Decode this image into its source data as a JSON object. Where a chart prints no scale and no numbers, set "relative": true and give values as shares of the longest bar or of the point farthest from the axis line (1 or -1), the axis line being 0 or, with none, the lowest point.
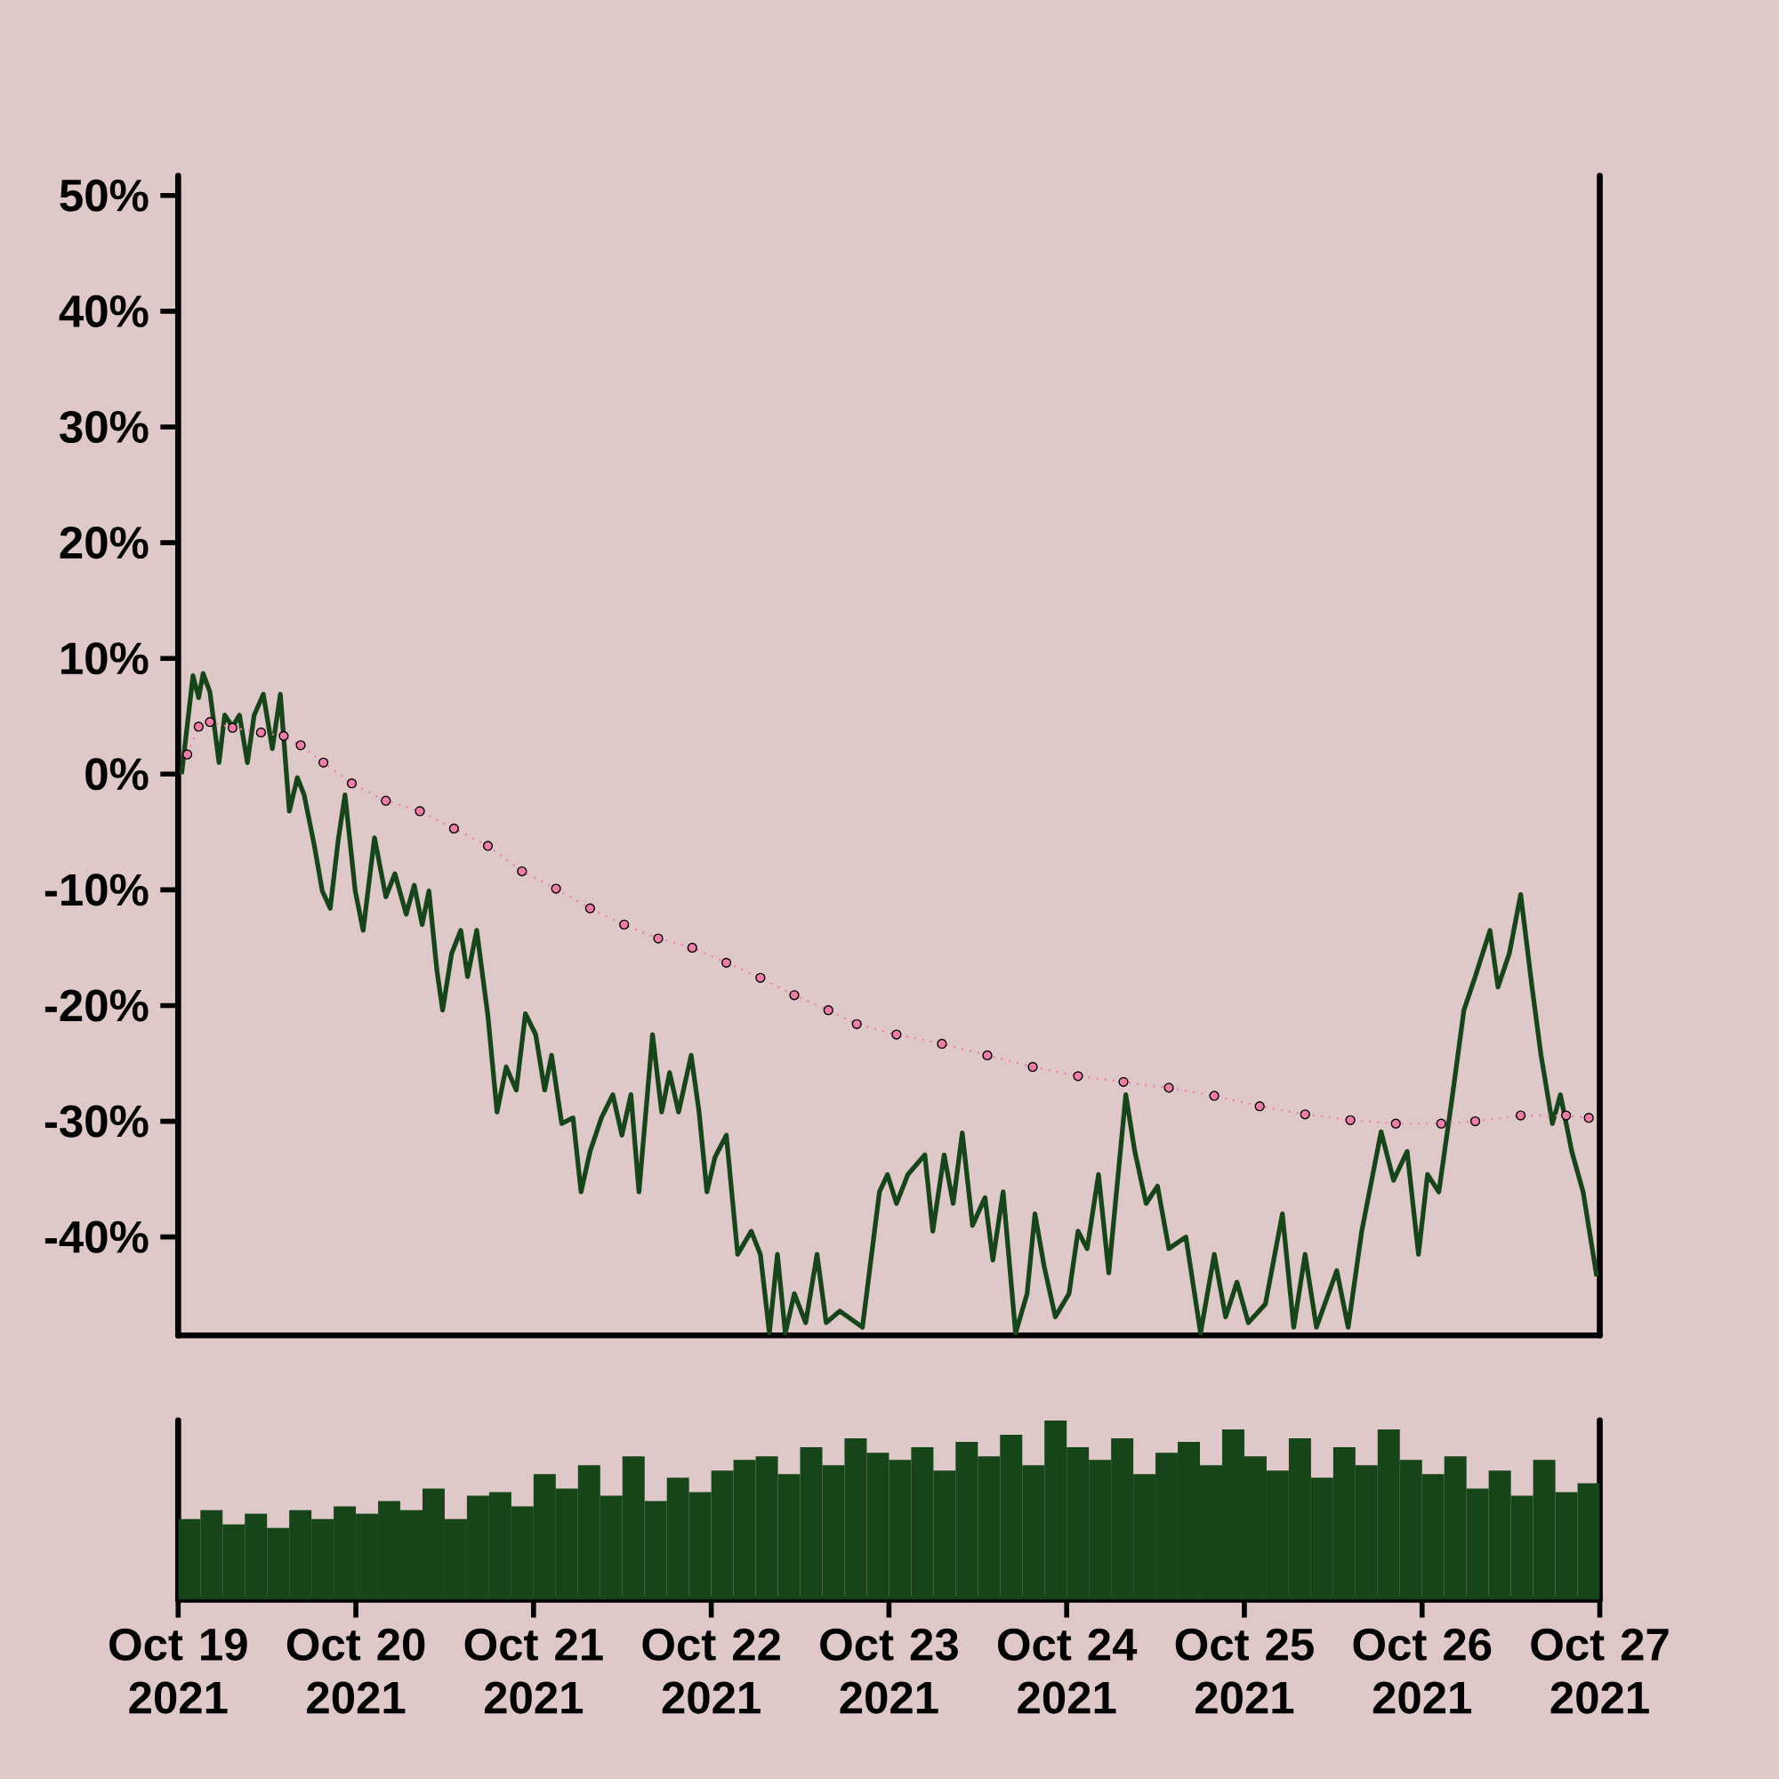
{
  "chart_data": [
    {
      "type": "line",
      "xlim": [
        "2021-10-19",
        "2021-10-27"
      ],
      "ylim": [
        -48.5,
        51.7
      ],
      "tick_labels": "y",
      "yticks": [
        {
          "value": 50,
          "label": "50%"
        },
        {
          "value": 40,
          "label": "40%"
        },
        {
          "value": 30,
          "label": "30%"
        },
        {
          "value": 20,
          "label": "20%"
        },
        {
          "value": 10,
          "label": "10%"
        },
        {
          "value": 0,
          "label": "0%"
        },
        {
          "value": -10,
          "label": "-10%"
        },
        {
          "value": -20,
          "label": "-20%"
        },
        {
          "value": -30,
          "label": "-30%"
        },
        {
          "value": -40,
          "label": "-40%"
        }
      ],
      "series": [
        {
          "color": "#16451a",
          "x": [
            "2021-10-19T00:28",
            "2021-10-19T02:00",
            "2021-10-19T02:46",
            "2021-10-19T03:22",
            "2021-10-19T04:17",
            "2021-10-19T05:31",
            "2021-10-19T06:17",
            "2021-10-19T07:21",
            "2021-10-19T08:17",
            "2021-10-19T09:21",
            "2021-10-19T10:16",
            "2021-10-19T11:30",
            "2021-10-19T12:43",
            "2021-10-19T13:48",
            "2021-10-19T15:01",
            "2021-10-19T16:06",
            "2021-10-19T17:01",
            "2021-10-19T18:24",
            "2021-10-19T19:28",
            "2021-10-19T20:32",
            "2021-10-19T21:37",
            "2021-10-19T22:32",
            "2021-10-19T23:55",
            "2021-10-20T00:59",
            "2021-10-20T02:31",
            "2021-10-20T04:03",
            "2021-10-20T05:16",
            "2021-10-20T06:48",
            "2021-10-20T07:53",
            "2021-10-20T08:57",
            "2021-10-20T09:52",
            "2021-10-20T10:57",
            "2021-10-20T11:43",
            "2021-10-20T12:56",
            "2021-10-20T14:10",
            "2021-10-20T15:05",
            "2021-10-20T16:19",
            "2021-10-20T17:50",
            "2021-10-20T19:04",
            "2021-10-20T20:18",
            "2021-10-20T21:40",
            "2021-10-20T22:54",
            "2021-10-21T00:17",
            "2021-10-21T01:30",
            "2021-10-21T02:26",
            "2021-10-21T03:48",
            "2021-10-21T05:20",
            "2021-10-21T06:25",
            "2021-10-21T07:38",
            "2021-10-21T09:10",
            "2021-10-21T10:42",
            "2021-10-21T11:56",
            "2021-10-21T13:09",
            "2021-10-21T14:14",
            "2021-10-21T16:04",
            "2021-10-21T17:18",
            "2021-10-21T18:22",
            "2021-10-21T19:35",
            "2021-10-21T21:17",
            "2021-10-21T22:21",
            "2021-10-21T23:25",
            "2021-10-22T00:30",
            "2021-10-22T02:02",
            "2021-10-22T03:34",
            "2021-10-22T05:24",
            "2021-10-22T06:38",
            "2021-10-22T07:51",
            "2021-10-22T08:56",
            "2021-10-22T10:00",
            "2021-10-22T11:13",
            "2021-10-22T12:45",
            "2021-10-22T14:17",
            "2021-10-22T15:31",
            "2021-10-22T17:21",
            "2021-10-22T20:25",
            "2021-10-22T22:43",
            "2021-10-22T23:48",
            "2021-10-23T01:01",
            "2021-10-23T02:33",
            "2021-10-23T04:51",
            "2021-10-23T05:55",
            "2021-10-23T07:27",
            "2021-10-23T08:40",
            "2021-10-23T09:54",
            "2021-10-23T11:17",
            "2021-10-23T12:58",
            "2021-10-23T14:02",
            "2021-10-23T15:25",
            "2021-10-23T17:06",
            "2021-10-23T18:39",
            "2021-10-23T19:43",
            "2021-10-23T20:57",
            "2021-10-23T22:28",
            "2021-10-24T00:19",
            "2021-10-24T01:32",
            "2021-10-24T02:46",
            "2021-10-24T04:18",
            "2021-10-24T05:41",
            "2021-10-24T07:59",
            "2021-10-24T09:12",
            "2021-10-24T10:44",
            "2021-10-24T12:16",
            "2021-10-24T13:48",
            "2021-10-24T16:06",
            "2021-10-24T18:05",
            "2021-10-24T19:56",
            "2021-10-24T21:28",
            "2021-10-24T23:00",
            "2021-10-25T00:32",
            "2021-10-25T02:50",
            "2021-10-25T05:08",
            "2021-10-25T06:40",
            "2021-10-25T08:12",
            "2021-10-25T09:44",
            "2021-10-25T12:29",
            "2021-10-25T14:01",
            "2021-10-25T15:51",
            "2021-10-25T18:28",
            "2021-10-25T20:09",
            "2021-10-25T21:59",
            "2021-10-25T23:31",
            "2021-10-26T00:44",
            "2021-10-26T02:16",
            "2021-10-26T04:07",
            "2021-10-26T05:39",
            "2021-10-26T07:11",
            "2021-10-26T09:10",
            "2021-10-26T10:15",
            "2021-10-26T11:47",
            "2021-10-26T13:19",
            "2021-10-26T14:51",
            "2021-10-26T16:04",
            "2021-10-26T17:36",
            "2021-10-26T18:41",
            "2021-10-26T20:13",
            "2021-10-26T21:45",
            "2021-10-26T23:35"
          ],
          "values": [
            0,
            8.5,
            6.6,
            8.7,
            7.1,
            1.0,
            5.1,
            4.1,
            5.1,
            1.0,
            5.1,
            6.9,
            2.2,
            6.9,
            -3.2,
            -0.3,
            -1.8,
            -6.2,
            -10.1,
            -11.6,
            -5.7,
            -1.8,
            -10.1,
            -13.5,
            -5.5,
            -10.6,
            -8.6,
            -12.1,
            -9.6,
            -13.0,
            -10.1,
            -17.0,
            -20.4,
            -15.5,
            -13.5,
            -17.5,
            -13.5,
            -20.9,
            -29.2,
            -25.3,
            -27.3,
            -20.7,
            -22.5,
            -27.3,
            -24.3,
            -30.2,
            -29.7,
            -36.1,
            -32.6,
            -29.7,
            -27.7,
            -31.2,
            -27.7,
            -36.1,
            -22.5,
            -29.2,
            -25.8,
            -29.2,
            -24.3,
            -29.2,
            -36.1,
            -33.1,
            -31.2,
            -41.5,
            -39.5,
            -41.5,
            -48.3,
            -41.5,
            -48.3,
            -44.9,
            -47.4,
            -41.5,
            -47.4,
            -46.4,
            -47.8,
            -36.1,
            -34.6,
            -37.1,
            -34.6,
            -32.9,
            -39.5,
            -32.9,
            -37.1,
            -31.0,
            -39.0,
            -36.6,
            -42.0,
            -36.1,
            -48.3,
            -44.9,
            -38.0,
            -42.5,
            -46.9,
            -44.9,
            -39.5,
            -41.0,
            -34.6,
            -43.1,
            -27.7,
            -32.6,
            -37.1,
            -35.6,
            -41.0,
            -40.0,
            -48.3,
            -41.5,
            -46.9,
            -43.9,
            -47.4,
            -45.8,
            -38.0,
            -47.8,
            -41.5,
            -47.8,
            -42.9,
            -47.8,
            -39.5,
            -30.9,
            -35.1,
            -32.6,
            -41.5,
            -34.6,
            -36.1,
            -27.7,
            -20.4,
            -17.5,
            -13.5,
            -18.4,
            -15.5,
            -10.4,
            -18.4,
            -24.3,
            -30.2,
            -27.7,
            -32.6,
            -36.1,
            -43.4
          ]
        },
        {
          "color": "#f07ca8",
          "marker": "circle",
          "line_style": "dotted",
          "x": [
            "2021-10-19T01:14",
            "2021-10-19T02:46",
            "2021-10-19T04:17",
            "2021-10-19T07:21",
            "2021-10-19T11:11",
            "2021-10-19T14:15",
            "2021-10-19T16:33",
            "2021-10-19T19:37",
            "2021-10-19T23:27",
            "2021-10-20T04:03",
            "2021-10-20T08:39",
            "2021-10-20T13:15",
            "2021-10-20T17:50",
            "2021-10-20T22:26",
            "2021-10-21T03:02",
            "2021-10-21T07:38",
            "2021-10-21T12:14",
            "2021-10-21T16:50",
            "2021-10-21T21:26",
            "2021-10-22T02:02",
            "2021-10-22T06:38",
            "2021-10-22T11:13",
            "2021-10-22T15:49",
            "2021-10-22T19:39",
            "2021-10-23T01:01",
            "2021-10-23T07:09",
            "2021-10-23T13:17",
            "2021-10-23T19:25",
            "2021-10-24T01:32",
            "2021-10-24T07:40",
            "2021-10-24T13:48",
            "2021-10-24T19:56",
            "2021-10-25T02:04",
            "2021-10-25T08:12",
            "2021-10-25T14:19",
            "2021-10-25T20:27",
            "2021-10-26T02:35",
            "2021-10-26T07:11",
            "2021-10-26T13:19",
            "2021-10-26T19:27",
            "2021-10-26T22:31"
          ],
          "values": [
            1.7,
            4.1,
            4.5,
            4.0,
            3.6,
            3.3,
            2.5,
            1.0,
            -0.8,
            -2.3,
            -3.2,
            -4.7,
            -6.2,
            -8.4,
            -9.9,
            -11.6,
            -13.0,
            -14.2,
            -15.0,
            -16.3,
            -17.6,
            -19.1,
            -20.4,
            -21.6,
            -22.5,
            -23.3,
            -24.3,
            -25.3,
            -26.1,
            -26.6,
            -27.1,
            -27.8,
            -28.7,
            -29.4,
            -29.9,
            -30.2,
            -30.2,
            -30.0,
            -29.5,
            -29.5,
            -29.7
          ]
        }
      ]
    },
    {
      "type": "bar",
      "relative": true,
      "color": "#16451a",
      "xlim": [
        "2021-10-19",
        "2021-10-27"
      ],
      "tick_labels": "x",
      "xticks": [
        {
          "value": "2021-10-19",
          "label": "Oct 19 2021"
        },
        {
          "value": "2021-10-20",
          "label": "Oct 20 2021"
        },
        {
          "value": "2021-10-21",
          "label": "Oct 21 2021"
        },
        {
          "value": "2021-10-22",
          "label": "Oct 22 2021"
        },
        {
          "value": "2021-10-23",
          "label": "Oct 23 2021"
        },
        {
          "value": "2021-10-24",
          "label": "Oct 24 2021"
        },
        {
          "value": "2021-10-25",
          "label": "Oct 25 2021"
        },
        {
          "value": "2021-10-26",
          "label": "Oct 26 2021"
        },
        {
          "value": "2021-10-27",
          "label": "Oct 27 2021"
        }
      ],
      "x": [
        "2021-10-19T01:30",
        "2021-10-19T04:30",
        "2021-10-19T07:30",
        "2021-10-19T10:30",
        "2021-10-19T13:30",
        "2021-10-19T16:30",
        "2021-10-19T19:30",
        "2021-10-19T22:30",
        "2021-10-20T01:30",
        "2021-10-20T04:30",
        "2021-10-20T07:30",
        "2021-10-20T10:30",
        "2021-10-20T13:30",
        "2021-10-20T16:30",
        "2021-10-20T19:30",
        "2021-10-20T22:30",
        "2021-10-21T01:30",
        "2021-10-21T04:30",
        "2021-10-21T07:30",
        "2021-10-21T10:30",
        "2021-10-21T13:30",
        "2021-10-21T16:30",
        "2021-10-21T19:30",
        "2021-10-21T22:30",
        "2021-10-22T01:30",
        "2021-10-22T04:30",
        "2021-10-22T07:30",
        "2021-10-22T10:30",
        "2021-10-22T13:30",
        "2021-10-22T16:30",
        "2021-10-22T19:30",
        "2021-10-22T22:30",
        "2021-10-23T01:30",
        "2021-10-23T04:30",
        "2021-10-23T07:30",
        "2021-10-23T10:30",
        "2021-10-23T13:30",
        "2021-10-23T16:30",
        "2021-10-23T19:30",
        "2021-10-23T22:30",
        "2021-10-24T01:30",
        "2021-10-24T04:30",
        "2021-10-24T07:30",
        "2021-10-24T10:30",
        "2021-10-24T13:30",
        "2021-10-24T16:30",
        "2021-10-24T19:30",
        "2021-10-24T22:30",
        "2021-10-25T01:30",
        "2021-10-25T04:30",
        "2021-10-25T07:30",
        "2021-10-25T10:30",
        "2021-10-25T13:30",
        "2021-10-25T16:30",
        "2021-10-25T19:30",
        "2021-10-25T22:30",
        "2021-10-26T01:30",
        "2021-10-26T04:30",
        "2021-10-26T07:30",
        "2021-10-26T10:30",
        "2021-10-26T13:30",
        "2021-10-26T16:30",
        "2021-10-26T19:30",
        "2021-10-26T22:30"
      ],
      "values": [
        0.45,
        0.5,
        0.42,
        0.48,
        0.4,
        0.5,
        0.45,
        0.52,
        0.48,
        0.55,
        0.5,
        0.62,
        0.45,
        0.58,
        0.6,
        0.52,
        0.7,
        0.62,
        0.75,
        0.58,
        0.8,
        0.55,
        0.68,
        0.6,
        0.72,
        0.78,
        0.8,
        0.7,
        0.85,
        0.75,
        0.9,
        0.82,
        0.78,
        0.85,
        0.72,
        0.88,
        0.8,
        0.92,
        0.75,
        1.0,
        0.85,
        0.78,
        0.9,
        0.7,
        0.82,
        0.88,
        0.75,
        0.95,
        0.8,
        0.72,
        0.9,
        0.68,
        0.85,
        0.75,
        0.95,
        0.78,
        0.7,
        0.8,
        0.62,
        0.72,
        0.58,
        0.78,
        0.6,
        0.65
      ]
    }
  ]
}
